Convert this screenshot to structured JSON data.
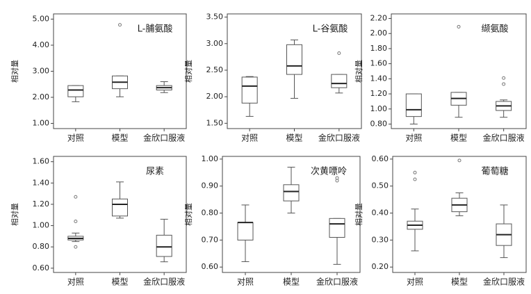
{
  "chart_data": [
    {
      "type": "box",
      "title": "L-脯氨酸",
      "ylabel": "相对量",
      "categories": [
        "对照",
        "模型",
        "金欣口服液"
      ],
      "ylim": [
        0.8,
        5.2
      ],
      "yticks": [
        {
          "value": 1,
          "label": "1.00"
        },
        {
          "value": 2,
          "label": "2.00"
        },
        {
          "value": 3,
          "label": "3.00"
        },
        {
          "value": 4,
          "label": "4.00"
        },
        {
          "value": 5,
          "label": "5.00"
        }
      ],
      "boxes": [
        {
          "min": 1.83,
          "q1": 2.02,
          "median": 2.28,
          "q3": 2.45,
          "max": 2.45,
          "outliers": []
        },
        {
          "min": 2.02,
          "q1": 2.33,
          "median": 2.58,
          "q3": 2.82,
          "max": 2.82,
          "outliers": [
            4.78
          ]
        },
        {
          "min": 2.18,
          "q1": 2.28,
          "median": 2.37,
          "q3": 2.45,
          "max": 2.6,
          "outliers": []
        }
      ]
    },
    {
      "type": "box",
      "title": "L-谷氨酸",
      "ylabel": "相对量",
      "categories": [
        "对照",
        "模型",
        "金欣口服液"
      ],
      "ylim": [
        1.4,
        3.56
      ],
      "yticks": [
        {
          "value": 1.5,
          "label": "1.50"
        },
        {
          "value": 2,
          "label": "2.00"
        },
        {
          "value": 2.5,
          "label": "2.50"
        },
        {
          "value": 3,
          "label": "3.00"
        },
        {
          "value": 3.5,
          "label": "3.50"
        }
      ],
      "boxes": [
        {
          "min": 1.63,
          "q1": 1.88,
          "median": 2.2,
          "q3": 2.37,
          "max": 2.38,
          "outliers": []
        },
        {
          "min": 1.97,
          "q1": 2.42,
          "median": 2.58,
          "q3": 2.98,
          "max": 3.07,
          "outliers": []
        },
        {
          "min": 2.07,
          "q1": 2.17,
          "median": 2.25,
          "q3": 2.42,
          "max": 2.42,
          "outliers": [
            2.82
          ]
        }
      ]
    },
    {
      "type": "box",
      "title": "缬氨酸",
      "ylabel": "相对量",
      "categories": [
        "对照",
        "模型",
        "金欣口服液"
      ],
      "ylim": [
        0.74,
        2.26
      ],
      "yticks": [
        {
          "value": 0.8,
          "label": "0.80"
        },
        {
          "value": 1,
          "label": "1.00"
        },
        {
          "value": 1.2,
          "label": "1.20"
        },
        {
          "value": 1.4,
          "label": "1.40"
        },
        {
          "value": 1.6,
          "label": "1.60"
        },
        {
          "value": 1.8,
          "label": "1.80"
        },
        {
          "value": 2,
          "label": "2.00"
        },
        {
          "value": 2.2,
          "label": "2.20"
        }
      ],
      "boxes": [
        {
          "min": 0.8,
          "q1": 0.9,
          "median": 0.99,
          "q3": 1.2,
          "max": 1.2,
          "outliers": []
        },
        {
          "min": 0.89,
          "q1": 1.05,
          "median": 1.14,
          "q3": 1.22,
          "max": 1.22,
          "outliers": [
            2.09
          ]
        },
        {
          "min": 0.89,
          "q1": 0.98,
          "median": 1.04,
          "q3": 1.1,
          "max": 1.12,
          "outliers": [
            1.33,
            1.41
          ]
        }
      ]
    },
    {
      "type": "box",
      "title": "尿素",
      "ylabel": "相对量",
      "categories": [
        "对照",
        "模型",
        "金欣口服液"
      ],
      "ylim": [
        0.56,
        1.65
      ],
      "yticks": [
        {
          "value": 0.6,
          "label": "0.60"
        },
        {
          "value": 0.8,
          "label": "0.80"
        },
        {
          "value": 1,
          "label": "1.00"
        },
        {
          "value": 1.2,
          "label": "1.20"
        },
        {
          "value": 1.4,
          "label": "1.40"
        },
        {
          "value": 1.6,
          "label": "1.60"
        }
      ],
      "boxes": [
        {
          "min": 0.85,
          "q1": 0.865,
          "median": 0.88,
          "q3": 0.9,
          "max": 0.93,
          "outliers": [
            0.8,
            1.04,
            1.27
          ]
        },
        {
          "min": 1.07,
          "q1": 1.09,
          "median": 1.2,
          "q3": 1.25,
          "max": 1.41,
          "outliers": []
        },
        {
          "min": 0.66,
          "q1": 0.71,
          "median": 0.8,
          "q3": 0.91,
          "max": 1.06,
          "outliers": []
        }
      ]
    },
    {
      "type": "box",
      "title": "次黄嘌呤",
      "ylabel": "相对量",
      "categories": [
        "对照",
        "模型",
        "金欣口服液"
      ],
      "ylim": [
        0.58,
        1.01
      ],
      "yticks": [
        {
          "value": 0.6,
          "label": "0.60"
        },
        {
          "value": 0.7,
          "label": "0.70"
        },
        {
          "value": 0.8,
          "label": "0.80"
        },
        {
          "value": 0.9,
          "label": "0.90"
        },
        {
          "value": 1,
          "label": "1.00"
        }
      ],
      "boxes": [
        {
          "min": 0.62,
          "q1": 0.7,
          "median": 0.765,
          "q3": 0.765,
          "max": 0.83,
          "outliers": []
        },
        {
          "min": 0.8,
          "q1": 0.845,
          "median": 0.88,
          "q3": 0.905,
          "max": 0.97,
          "outliers": []
        },
        {
          "min": 0.61,
          "q1": 0.71,
          "median": 0.76,
          "q3": 0.78,
          "max": 0.78,
          "outliers": [
            0.92,
            0.93
          ]
        }
      ]
    },
    {
      "type": "box",
      "title": "葡萄糖",
      "ylabel": "相对量",
      "categories": [
        "对照",
        "模型",
        "金欣口服液"
      ],
      "ylim": [
        0.18,
        0.61
      ],
      "yticks": [
        {
          "value": 0.2,
          "label": "0.20"
        },
        {
          "value": 0.3,
          "label": "0.30"
        },
        {
          "value": 0.4,
          "label": "0.40"
        },
        {
          "value": 0.5,
          "label": "0.50"
        },
        {
          "value": 0.6,
          "label": "0.60"
        }
      ],
      "boxes": [
        {
          "min": 0.26,
          "q1": 0.34,
          "median": 0.355,
          "q3": 0.37,
          "max": 0.415,
          "outliers": [
            0.525,
            0.55
          ]
        },
        {
          "min": 0.39,
          "q1": 0.405,
          "median": 0.43,
          "q3": 0.455,
          "max": 0.475,
          "outliers": [
            0.595
          ]
        },
        {
          "min": 0.235,
          "q1": 0.28,
          "median": 0.32,
          "q3": 0.36,
          "max": 0.43,
          "outliers": []
        }
      ]
    }
  ]
}
